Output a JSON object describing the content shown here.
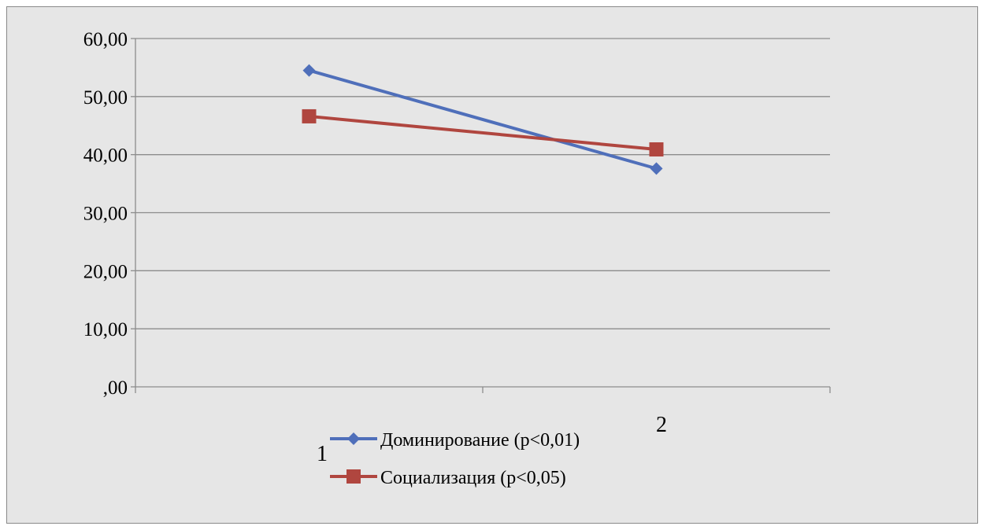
{
  "chart_data": {
    "type": "line",
    "categories": [
      "1",
      "2"
    ],
    "series": [
      {
        "name": "Доминирование (p<0,01)",
        "values": [
          54.5,
          37.6
        ],
        "color": "#4f6fba",
        "marker": "diamond"
      },
      {
        "name": "Социализация (p<0,05)",
        "values": [
          46.6,
          40.9
        ],
        "color": "#b0463f",
        "marker": "square"
      }
    ],
    "ylim": [
      0,
      60
    ],
    "yticks": [
      ",00",
      "10,00",
      "20,00",
      "30,00",
      "40,00",
      "50,00",
      "60,00"
    ],
    "grid": true,
    "legend_position": "bottom",
    "background": "#e6e6e6",
    "gridline_color": "#8c8c8c"
  }
}
